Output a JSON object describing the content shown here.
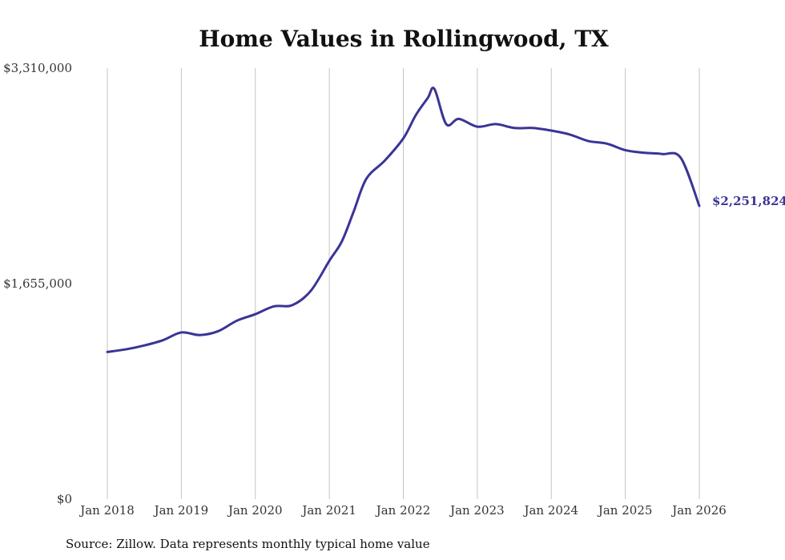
{
  "chart_data": {
    "type": "line",
    "title": "Home Values in Rollingwood, TX",
    "xlabel": "",
    "ylabel": "",
    "ylim": [
      0,
      3310000
    ],
    "y_ticks": [
      {
        "value": 0,
        "label": "$0"
      },
      {
        "value": 1655000,
        "label": "$1,655,000"
      },
      {
        "value": 3310000,
        "label": "$3,310,000"
      }
    ],
    "x_ticks": [
      {
        "value": 2018,
        "label": "Jan 2018"
      },
      {
        "value": 2019,
        "label": "Jan 2019"
      },
      {
        "value": 2020,
        "label": "Jan 2020"
      },
      {
        "value": 2021,
        "label": "Jan 2021"
      },
      {
        "value": 2022,
        "label": "Jan 2022"
      },
      {
        "value": 2023,
        "label": "Jan 2023"
      },
      {
        "value": 2024,
        "label": "Jan 2024"
      },
      {
        "value": 2025,
        "label": "Jan 2025"
      },
      {
        "value": 2026,
        "label": "Jan 2026"
      }
    ],
    "grid": "vertical",
    "line_color": "#3a3496",
    "series": [
      {
        "name": "Rollingwood, TX typical home value",
        "x": [
          2018.0,
          2018.25,
          2018.5,
          2018.75,
          2019.0,
          2019.25,
          2019.5,
          2019.75,
          2020.0,
          2020.25,
          2020.5,
          2020.75,
          2021.0,
          2021.17,
          2021.33,
          2021.5,
          2021.75,
          2022.0,
          2022.17,
          2022.33,
          2022.42,
          2022.58,
          2022.75,
          2023.0,
          2023.25,
          2023.5,
          2023.75,
          2024.0,
          2024.25,
          2024.5,
          2024.75,
          2025.0,
          2025.25,
          2025.5,
          2025.75,
          2026.0
        ],
        "values": [
          1130000,
          1150000,
          1180000,
          1220000,
          1280000,
          1260000,
          1290000,
          1370000,
          1420000,
          1480000,
          1490000,
          1600000,
          1830000,
          1980000,
          2210000,
          2460000,
          2600000,
          2770000,
          2950000,
          3080000,
          3150000,
          2880000,
          2920000,
          2860000,
          2880000,
          2850000,
          2850000,
          2830000,
          2800000,
          2750000,
          2730000,
          2680000,
          2660000,
          2650000,
          2620000,
          2251824
        ]
      }
    ],
    "end_label": "$2,251,824",
    "source": "Source: Zillow. Data represents monthly typical home value"
  }
}
